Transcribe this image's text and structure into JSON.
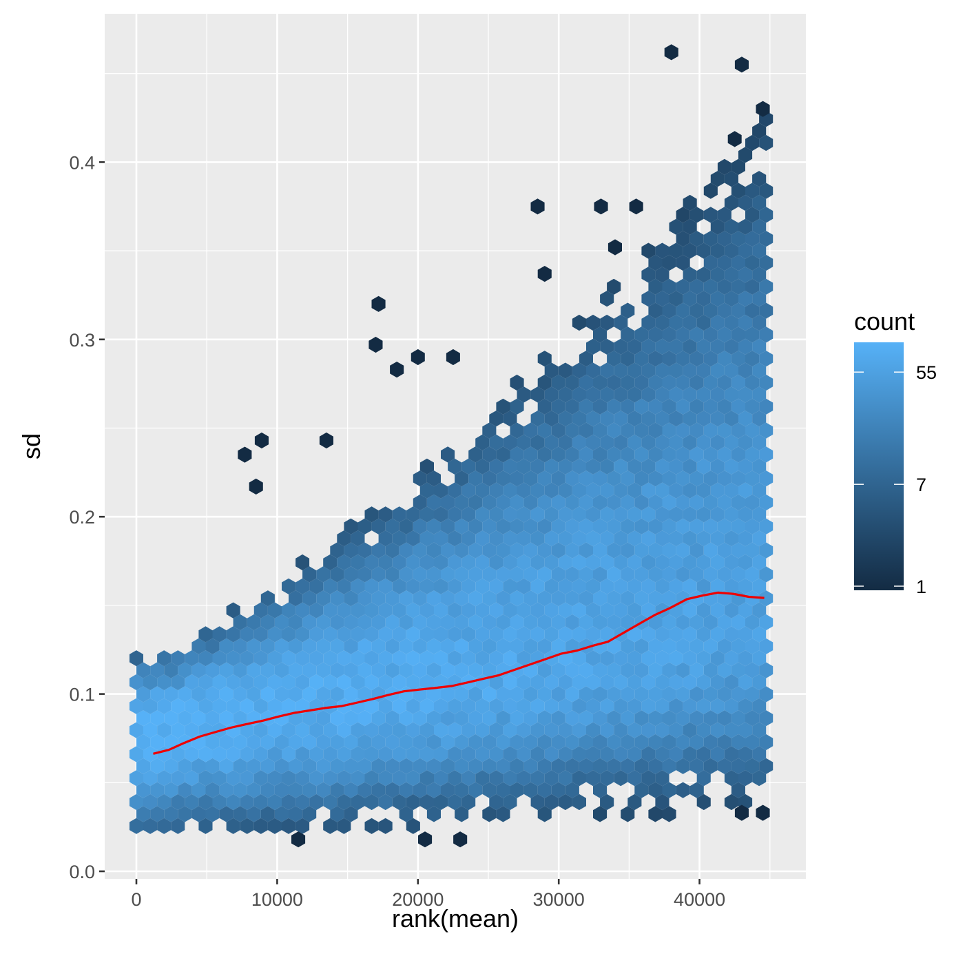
{
  "chart_data": {
    "type": "hexbin",
    "title": "",
    "xlabel": "rank(mean)",
    "ylabel": "sd",
    "xlim": [
      -2300,
      47500
    ],
    "ylim": [
      -0.01,
      0.48
    ],
    "x_ticks": [
      0,
      10000,
      20000,
      30000,
      40000
    ],
    "x_tick_labels": [
      "0",
      "10000",
      "20000",
      "30000",
      "40000"
    ],
    "y_ticks": [
      0.0,
      0.1,
      0.2,
      0.3,
      0.4
    ],
    "y_tick_labels": [
      "0.0",
      "0.1",
      "0.2",
      "0.3",
      "0.4"
    ],
    "grid": true,
    "background": "#ebebeb",
    "hexbin": {
      "x_range": [
        0,
        45200
      ],
      "points_per_rank": 1,
      "center_sd_at_rank0": 0.078,
      "center_sd_at_max": 0.135,
      "lower_edge_sd_at_rank0": 0.018,
      "lower_edge_sd_at_max": 0.035,
      "upper_edge_sd_at_rank0": 0.125,
      "upper_edge_sd_at_max": 0.43,
      "outliers": [
        {
          "x": 38000,
          "y": 0.462
        },
        {
          "x": 43000,
          "y": 0.455
        },
        {
          "x": 17200,
          "y": 0.32
        },
        {
          "x": 17000,
          "y": 0.297
        },
        {
          "x": 28500,
          "y": 0.375
        },
        {
          "x": 33000,
          "y": 0.375
        },
        {
          "x": 29000,
          "y": 0.337
        },
        {
          "x": 8900,
          "y": 0.243
        },
        {
          "x": 7700,
          "y": 0.235
        },
        {
          "x": 8500,
          "y": 0.217
        },
        {
          "x": 13500,
          "y": 0.243
        },
        {
          "x": 20000,
          "y": 0.29
        },
        {
          "x": 22500,
          "y": 0.29
        },
        {
          "x": 18500,
          "y": 0.283
        },
        {
          "x": 44500,
          "y": 0.43
        },
        {
          "x": 42500,
          "y": 0.413
        },
        {
          "x": 35500,
          "y": 0.375
        },
        {
          "x": 34000,
          "y": 0.352
        },
        {
          "x": 11500,
          "y": 0.018
        },
        {
          "x": 23000,
          "y": 0.018
        },
        {
          "x": 20500,
          "y": 0.018
        },
        {
          "x": 43000,
          "y": 0.033
        },
        {
          "x": 44500,
          "y": 0.033
        }
      ]
    },
    "smooth_line": {
      "color": "#ee0000",
      "x": [
        1200,
        2300,
        3400,
        4500,
        5600,
        6700,
        7800,
        9000,
        10100,
        11200,
        12300,
        13400,
        14600,
        15700,
        16800,
        17900,
        19000,
        20100,
        21300,
        22400,
        23500,
        24600,
        25700,
        26800,
        27900,
        29000,
        30200,
        31300,
        32400,
        33500,
        34600,
        35700,
        36800,
        37900,
        39100,
        40200,
        41300,
        42400,
        43500,
        44600
      ],
      "y": [
        0.0663,
        0.0685,
        0.0724,
        0.076,
        0.0785,
        0.081,
        0.083,
        0.085,
        0.0873,
        0.0893,
        0.0907,
        0.0921,
        0.0932,
        0.0952,
        0.0972,
        0.0995,
        0.1015,
        0.1025,
        0.1035,
        0.1045,
        0.1065,
        0.1085,
        0.1105,
        0.1135,
        0.1165,
        0.1195,
        0.1228,
        0.1245,
        0.1272,
        0.1295,
        0.1345,
        0.1395,
        0.1445,
        0.1485,
        0.1535,
        0.1555,
        0.1572,
        0.1565,
        0.1548,
        0.1542
      ]
    },
    "legend": {
      "title": "count",
      "position": "right",
      "scale": "log",
      "breaks": [
        55,
        7,
        1
      ],
      "break_labels": [
        "55",
        "7",
        "1"
      ],
      "low_color": "#132b43",
      "high_color": "#56b1f7",
      "max_count": 95
    }
  }
}
